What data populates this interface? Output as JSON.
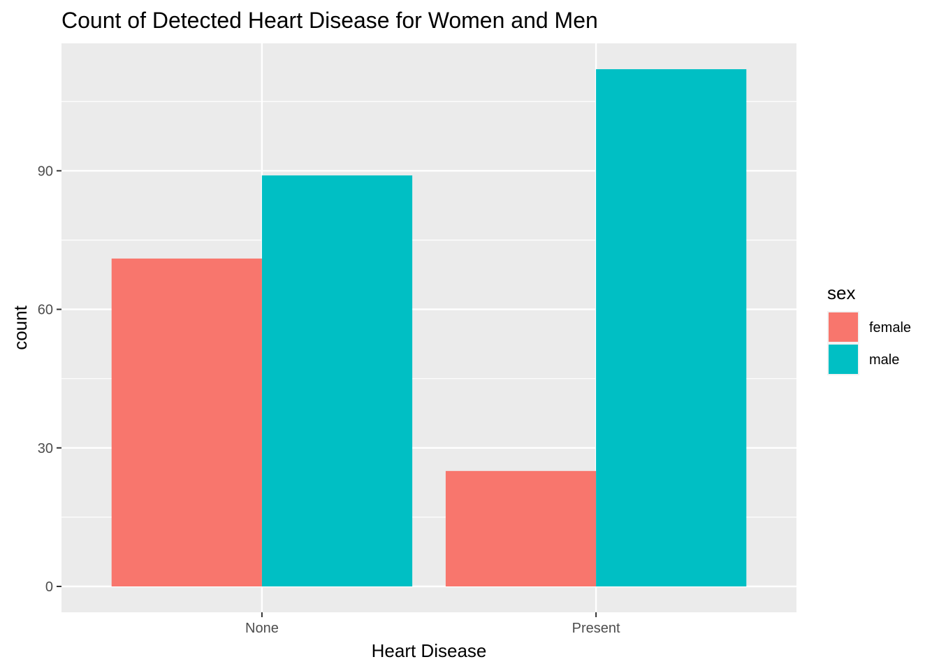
{
  "chart_data": {
    "type": "bar",
    "title": "Count of Detected Heart Disease for Women and Men",
    "xlabel": "Heart Disease",
    "ylabel": "count",
    "categories": [
      "None",
      "Present"
    ],
    "series": [
      {
        "name": "female",
        "color": "#F8766D",
        "values": [
          71,
          25
        ]
      },
      {
        "name": "male",
        "color": "#00BFC4",
        "values": [
          89,
          112
        ]
      }
    ],
    "ylim": [
      -5.6,
      117.6
    ],
    "yticks": [
      0,
      30,
      60,
      90
    ],
    "ytick_labels": [
      "0",
      "30",
      "60",
      "90"
    ],
    "yminor": [
      15,
      45,
      75,
      105
    ],
    "grid": true,
    "panel_background": "#EBEBEB",
    "legend": {
      "title": "sex",
      "placement": "right"
    }
  }
}
